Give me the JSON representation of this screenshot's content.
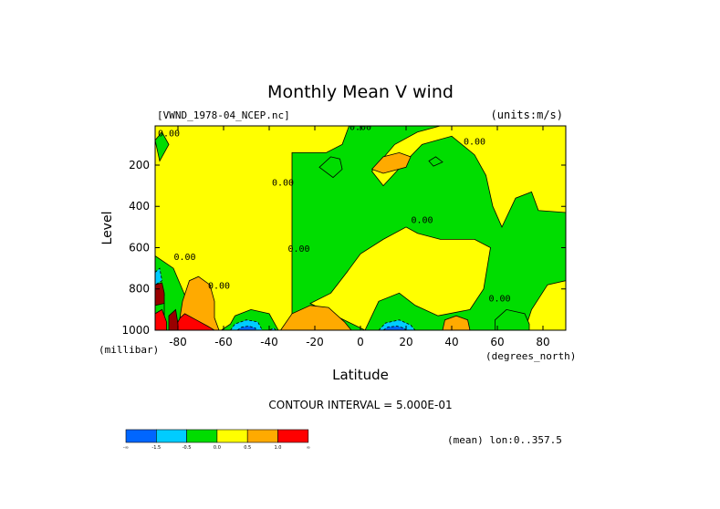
{
  "chart_data": {
    "type": "heatmap",
    "title": "Monthly Mean V wind",
    "dataset_label": "[VWND_1978-04_NCEP.nc]",
    "units_label": "(units:m/s)",
    "xlabel": "Latitude",
    "x_units": "(degrees_north)",
    "ylabel": "Level",
    "y_units": "(millibar)",
    "xlim": [
      -90,
      90
    ],
    "ylim": [
      1000,
      10
    ],
    "y_inverted": true,
    "x_ticks": [
      -80,
      -60,
      -40,
      -20,
      0,
      20,
      40,
      60,
      80
    ],
    "y_ticks": [
      200,
      400,
      600,
      800,
      1000
    ],
    "contour_interval_label": "CONTOUR INTERVAL = 5.000E-01",
    "averaging_label": "(mean) lon:0..357.5",
    "contour_labels": [
      "0.00",
      "0.00",
      "0.00",
      "0.00",
      "0.00",
      "0.00",
      "0.00",
      "0.00",
      "0.00"
    ],
    "legend": {
      "colors": [
        "#0066ff",
        "#00ccff",
        "#00dd00",
        "#ffff00",
        "#ffaa00",
        "#ff0000"
      ],
      "tick_labels": [
        "-∞",
        "-1.5",
        "-0.5",
        "0.0",
        "0.5",
        "1.0",
        "∞"
      ]
    },
    "regions": [
      {
        "level": 3,
        "pts": [
          [
            -90,
            1000
          ],
          [
            -30,
            1000
          ],
          [
            -30,
            140
          ],
          [
            -15,
            140
          ],
          [
            -8,
            100
          ],
          [
            -5,
            10
          ],
          [
            -90,
            10
          ]
        ]
      },
      {
        "level": 3,
        "pts": [
          [
            10,
            300
          ],
          [
            20,
            180
          ],
          [
            27,
            100
          ],
          [
            40,
            60
          ],
          [
            50,
            150
          ],
          [
            55,
            250
          ],
          [
            58,
            400
          ],
          [
            62,
            500
          ],
          [
            68,
            360
          ],
          [
            75,
            330
          ],
          [
            78,
            420
          ],
          [
            90,
            430
          ],
          [
            90,
            10
          ],
          [
            35,
            10
          ],
          [
            25,
            40
          ],
          [
            15,
            100
          ],
          [
            5,
            230
          ]
        ]
      },
      {
        "level": 3,
        "pts": [
          [
            2,
            1000
          ],
          [
            8,
            860
          ],
          [
            17,
            820
          ],
          [
            24,
            880
          ],
          [
            34,
            930
          ],
          [
            48,
            900
          ],
          [
            54,
            800
          ],
          [
            57,
            600
          ],
          [
            50,
            560
          ],
          [
            35,
            560
          ],
          [
            25,
            530
          ],
          [
            20,
            500
          ],
          [
            10,
            560
          ],
          [
            0,
            630
          ],
          [
            -6,
            720
          ],
          [
            -13,
            820
          ],
          [
            -22,
            870
          ]
        ]
      },
      {
        "level": 3,
        "pts": [
          [
            72,
            1000
          ],
          [
            75,
            900
          ],
          [
            82,
            780
          ],
          [
            90,
            760
          ],
          [
            90,
            1000
          ]
        ]
      },
      {
        "level": 2,
        "pts": [
          [
            -90,
            1000
          ],
          [
            -79,
            1000
          ],
          [
            -77,
            830
          ],
          [
            -82,
            700
          ],
          [
            -90,
            640
          ]
        ]
      },
      {
        "level": 2,
        "pts": [
          [
            -61,
            1000
          ],
          [
            -57,
            970
          ],
          [
            -55,
            930
          ],
          [
            -48,
            900
          ],
          [
            -40,
            920
          ],
          [
            -38,
            960
          ],
          [
            -36,
            1000
          ]
        ]
      },
      {
        "level": 2,
        "pts": [
          [
            -18,
            210
          ],
          [
            -13,
            160
          ],
          [
            -9,
            170
          ],
          [
            -8,
            220
          ],
          [
            -12,
            260
          ]
        ]
      },
      {
        "level": 2,
        "pts": [
          [
            59,
            1000
          ],
          [
            59,
            950
          ],
          [
            64,
            900
          ],
          [
            72,
            920
          ],
          [
            74,
            970
          ],
          [
            74,
            1000
          ]
        ]
      },
      {
        "level": 2,
        "pts": [
          [
            -90,
            80
          ],
          [
            -87,
            40
          ],
          [
            -84,
            100
          ],
          [
            -88,
            180
          ]
        ]
      },
      {
        "level": 2,
        "pts": [
          [
            30,
            180
          ],
          [
            33,
            160
          ],
          [
            36,
            185
          ],
          [
            32,
            205
          ]
        ]
      },
      {
        "level": 2,
        "pts": [
          [
            -90,
            860
          ],
          [
            -86,
            870
          ],
          [
            -86,
            940
          ],
          [
            -90,
            960
          ]
        ]
      },
      {
        "level": 1,
        "pts": [
          [
            -57,
            1000
          ],
          [
            -55,
            970
          ],
          [
            -50,
            950
          ],
          [
            -45,
            960
          ],
          [
            -43,
            1000
          ]
        ]
      },
      {
        "level": 1,
        "pts": [
          [
            -37,
            1000
          ],
          [
            -38,
            990
          ],
          [
            -40,
            1000
          ]
        ]
      },
      {
        "level": 1,
        "pts": [
          [
            8,
            1000
          ],
          [
            11,
            965
          ],
          [
            17,
            950
          ],
          [
            22,
            975
          ],
          [
            24,
            1000
          ]
        ]
      },
      {
        "level": 1,
        "pts": [
          [
            -90,
            720
          ],
          [
            -88,
            700
          ],
          [
            -87,
            760
          ],
          [
            -90,
            780
          ]
        ]
      },
      {
        "level": 0,
        "pts": [
          [
            -54,
            1000
          ],
          [
            -52,
            985
          ],
          [
            -49,
            980
          ],
          [
            -46,
            990
          ],
          [
            -46,
            1000
          ]
        ]
      },
      {
        "level": 0,
        "pts": [
          [
            10,
            1000
          ],
          [
            12,
            985
          ],
          [
            16,
            980
          ],
          [
            19,
            990
          ],
          [
            20,
            1000
          ]
        ]
      },
      {
        "level": 4,
        "pts": [
          [
            -80,
            1000
          ],
          [
            -78,
            860
          ],
          [
            -75,
            760
          ],
          [
            -71,
            740
          ],
          [
            -66,
            780
          ],
          [
            -64,
            860
          ],
          [
            -64,
            940
          ],
          [
            -62,
            1000
          ]
        ]
      },
      {
        "level": 4,
        "pts": [
          [
            -35,
            1000
          ],
          [
            -30,
            920
          ],
          [
            -22,
            880
          ],
          [
            -14,
            890
          ],
          [
            -7,
            960
          ],
          [
            -4,
            1000
          ]
        ]
      },
      {
        "level": 4,
        "pts": [
          [
            36,
            1000
          ],
          [
            37,
            950
          ],
          [
            42,
            930
          ],
          [
            47,
            950
          ],
          [
            48,
            1000
          ]
        ]
      },
      {
        "level": 4,
        "pts": [
          [
            5,
            220
          ],
          [
            10,
            160
          ],
          [
            17,
            140
          ],
          [
            22,
            160
          ],
          [
            20,
            210
          ],
          [
            10,
            240
          ]
        ]
      },
      {
        "level": 4,
        "pts": [
          [
            -90,
            840
          ],
          [
            -88,
            800
          ],
          [
            -86,
            830
          ]
        ]
      },
      {
        "level": 5,
        "pts": [
          [
            -82,
            1000
          ],
          [
            -79,
            940
          ],
          [
            -77,
            920
          ],
          [
            -72,
            950
          ],
          [
            -67,
            980
          ],
          [
            -64,
            1000
          ]
        ]
      },
      {
        "level": 5,
        "pts": [
          [
            -90,
            920
          ],
          [
            -87,
            900
          ],
          [
            -85,
            960
          ],
          [
            -85,
            1000
          ],
          [
            -90,
            1000
          ]
        ]
      },
      {
        "level": 6,
        "pts": [
          [
            -84,
            1000
          ],
          [
            -84,
            930
          ],
          [
            -81,
            900
          ],
          [
            -80,
            970
          ],
          [
            -80,
            1000
          ]
        ]
      },
      {
        "level": 6,
        "pts": [
          [
            -90,
            780
          ],
          [
            -87,
            770
          ],
          [
            -86,
            820
          ],
          [
            -86,
            870
          ],
          [
            -90,
            880
          ]
        ]
      }
    ]
  }
}
